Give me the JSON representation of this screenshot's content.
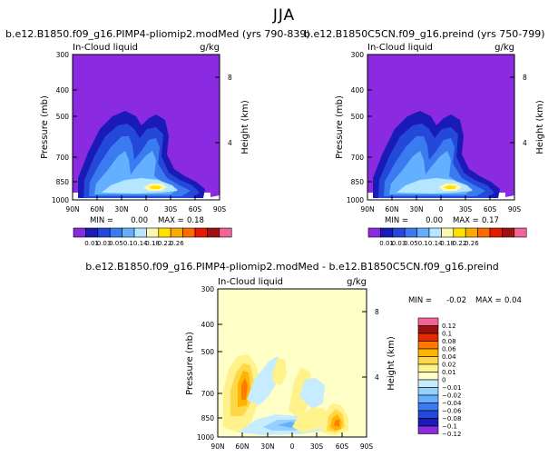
{
  "figure_title": "JJA",
  "colors": {
    "purple": "#8a2be2",
    "white": "#ffffff",
    "cream": "#ffffc8",
    "abs_palette": [
      "#8a2be2",
      "#1a1ab8",
      "#2448d8",
      "#3a7cf0",
      "#62b0ff",
      "#b4e6ff",
      "#fff6b0",
      "#ffe000",
      "#ffaa00",
      "#ff6a00",
      "#e61a00",
      "#a01010",
      "#f06496"
    ],
    "diff_palette": [
      "#8a2be2",
      "#1a1ab8",
      "#2448d8",
      "#3a7cf0",
      "#62b0ff",
      "#96d0ff",
      "#c8ecff",
      "#ffffc8",
      "#fff28a",
      "#ffd84a",
      "#ffb400",
      "#ff7a00",
      "#e62a00",
      "#a01010",
      "#f06496"
    ]
  },
  "chart_data": [
    {
      "type": "contour",
      "title": "b.e12.B1850.f09_g16.PIMP4-pliomip2.modMed (yrs 790-839)",
      "left_label": "In-Cloud liquid",
      "right_label": "g/kg",
      "ylabel": "Pressure (mb)",
      "ylabel_right": "Height (km)",
      "x_ticks": [
        "90N",
        "60N",
        "30N",
        "0",
        "30S",
        "60S",
        "90S"
      ],
      "y_ticks": [
        "300",
        "400",
        "500",
        "700",
        "850",
        "1000"
      ],
      "height_ticks": [
        "8",
        "4"
      ],
      "min_label": "MIN =",
      "min_value": "0.00",
      "max_label": "MAX =",
      "max_value": "0.18",
      "levels": [
        "0.01",
        "0.03",
        "0.05",
        "0.1",
        "0.14",
        "0.18",
        "0.22",
        "0.26"
      ],
      "level_labels": [
        "0.01",
        "0.03",
        "0.05",
        "0.1",
        "0.14",
        "0.18",
        "0.22",
        "0.26"
      ]
    },
    {
      "type": "contour",
      "title": "b.e12.B1850C5CN.f09_g16.preind (yrs 750-799)",
      "left_label": "In-Cloud liquid",
      "right_label": "g/kg",
      "ylabel": "Pressure (mb)",
      "ylabel_right": "Height (km)",
      "x_ticks": [
        "90N",
        "60N",
        "30N",
        "0",
        "30S",
        "60S",
        "90S"
      ],
      "y_ticks": [
        "300",
        "400",
        "500",
        "700",
        "850",
        "1000"
      ],
      "height_ticks": [
        "8",
        "4"
      ],
      "min_label": "MIN =",
      "min_value": "0.00",
      "max_label": "MAX =",
      "max_value": "0.17",
      "levels": [
        "0.01",
        "0.03",
        "0.05",
        "0.1",
        "0.14",
        "0.18",
        "0.22",
        "0.26"
      ],
      "level_labels": [
        "0.01",
        "0.03",
        "0.05",
        "0.1",
        "0.14",
        "0.18",
        "0.22",
        "0.26"
      ]
    },
    {
      "type": "contour",
      "title": "b.e12.B1850.f09_g16.PIMP4-pliomip2.modMed - b.e12.B1850C5CN.f09_g16.preind",
      "left_label": "In-Cloud liquid",
      "right_label": "g/kg",
      "ylabel": "Pressure (mb)",
      "ylabel_right": "Height (km)",
      "x_ticks": [
        "90N",
        "60N",
        "30N",
        "0",
        "30S",
        "60S",
        "90S"
      ],
      "y_ticks": [
        "300",
        "400",
        "500",
        "700",
        "850",
        "1000"
      ],
      "height_ticks": [
        "8",
        "4"
      ],
      "min_label": "MIN =",
      "min_value": "-0.02",
      "max_label": "MAX =",
      "max_value": "0.04",
      "levels": [
        "0.12",
        "0.1",
        "0.08",
        "0.06",
        "0.04",
        "0.02",
        "0.01",
        "0",
        "-0.01",
        "-0.02",
        "-0.04",
        "-0.06",
        "-0.08",
        "-0.1",
        "-0.12"
      ],
      "level_labels": [
        "0.12",
        "0.1",
        "0.08",
        "0.06",
        "0.04",
        "0.02",
        "0.01",
        "0",
        "−0.01",
        "−0.02",
        "−0.04",
        "−0.06",
        "−0.08",
        "−0.1",
        "−0.12"
      ]
    }
  ]
}
